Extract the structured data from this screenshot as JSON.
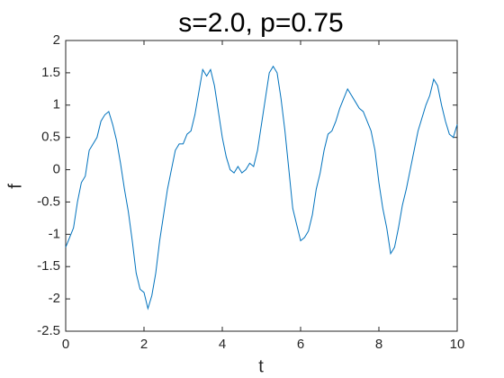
{
  "chart_data": {
    "type": "line",
    "title": "s=2.0, p=0.75",
    "x_label": "t",
    "y_label": "f",
    "x": [
      0,
      0.1,
      0.2,
      0.3,
      0.4,
      0.5,
      0.6,
      0.7,
      0.8,
      0.9,
      1.0,
      1.1,
      1.2,
      1.3,
      1.4,
      1.5,
      1.6,
      1.7,
      1.8,
      1.9,
      2.0,
      2.1,
      2.2,
      2.3,
      2.4,
      2.5,
      2.6,
      2.7,
      2.8,
      2.9,
      3.0,
      3.1,
      3.2,
      3.3,
      3.4,
      3.5,
      3.6,
      3.7,
      3.8,
      3.9,
      4.0,
      4.1,
      4.2,
      4.3,
      4.4,
      4.5,
      4.6,
      4.7,
      4.8,
      4.9,
      5.0,
      5.1,
      5.2,
      5.3,
      5.4,
      5.5,
      5.6,
      5.7,
      5.8,
      5.9,
      6.0,
      6.1,
      6.2,
      6.3,
      6.4,
      6.5,
      6.6,
      6.7,
      6.8,
      6.9,
      7.0,
      7.1,
      7.2,
      7.3,
      7.4,
      7.5,
      7.6,
      7.7,
      7.8,
      7.9,
      8.0,
      8.1,
      8.2,
      8.3,
      8.4,
      8.5,
      8.6,
      8.7,
      8.8,
      8.9,
      9.0,
      9.1,
      9.2,
      9.3,
      9.4,
      9.5,
      9.6,
      9.7,
      9.8,
      9.9,
      10.0
    ],
    "series": [
      {
        "color": "#0072bd",
        "values": [
          -1.2,
          -1.05,
          -0.9,
          -0.5,
          -0.2,
          -0.1,
          0.3,
          0.4,
          0.5,
          0.75,
          0.85,
          0.9,
          0.7,
          0.45,
          0.1,
          -0.3,
          -0.65,
          -1.1,
          -1.6,
          -1.85,
          -1.9,
          -2.15,
          -1.95,
          -1.6,
          -1.1,
          -0.7,
          -0.3,
          0.0,
          0.3,
          0.4,
          0.4,
          0.55,
          0.6,
          0.85,
          1.2,
          1.55,
          1.45,
          1.55,
          1.3,
          0.9,
          0.5,
          0.2,
          0.0,
          -0.05,
          0.05,
          -0.05,
          0.0,
          0.1,
          0.05,
          0.3,
          0.7,
          1.1,
          1.5,
          1.6,
          1.5,
          1.1,
          0.6,
          0.0,
          -0.6,
          -0.85,
          -1.1,
          -1.05,
          -0.95,
          -0.7,
          -0.3,
          -0.05,
          0.3,
          0.55,
          0.6,
          0.75,
          0.95,
          1.1,
          1.25,
          1.15,
          1.05,
          0.95,
          0.9,
          0.75,
          0.6,
          0.3,
          -0.2,
          -0.6,
          -0.9,
          -1.3,
          -1.2,
          -0.9,
          -0.55,
          -0.3,
          0.0,
          0.3,
          0.6,
          0.8,
          1.0,
          1.15,
          1.4,
          1.3,
          1.0,
          0.75,
          0.55,
          0.5,
          0.7
        ]
      }
    ],
    "xlim": [
      0,
      10
    ],
    "ylim": [
      -2.5,
      2
    ],
    "xticks": [
      0,
      2,
      4,
      6,
      8,
      10
    ],
    "yticks": [
      -2.5,
      -2,
      -1.5,
      -1,
      -0.5,
      0,
      0.5,
      1,
      1.5,
      2
    ],
    "grid": false
  }
}
